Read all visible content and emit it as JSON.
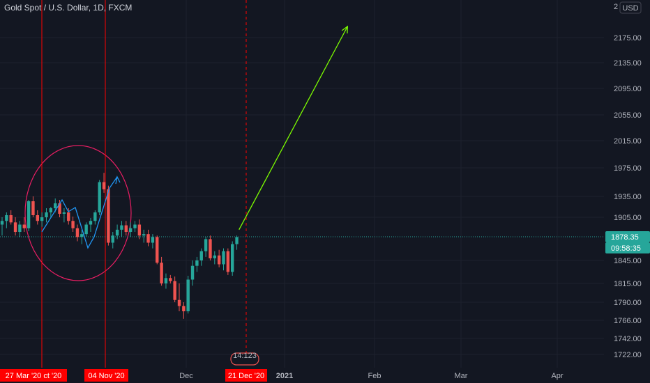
{
  "header": {
    "title": "Gold Spot / U.S. Dollar, 1D, FXCM",
    "currency": "USD"
  },
  "colors": {
    "bg": "#131722",
    "up": "#26a69a",
    "down": "#ef5350",
    "grid": "#1e222d",
    "text": "#b2b5be",
    "marker": "#ff0000",
    "arrow": "#7CFC00",
    "ellipse": "#e91e63",
    "pattern": "#2196f3",
    "price_line": "#26a69a"
  },
  "current": {
    "price": "1878.35",
    "countdown": "09:58:35"
  },
  "date_tags": {
    "left": "27 Mar '20",
    "left_suffix": "ct '20",
    "mid": "04 Nov '20",
    "right": "21 Dec '20"
  },
  "event_badge": "14:123",
  "chart_data": {
    "type": "candlestick",
    "title": "Gold Spot / U.S. Dollar, 1D, FXCM",
    "y_ticks": [
      "2175.00",
      "2135.00",
      "2095.00",
      "2055.00",
      "2015.00",
      "1975.00",
      "1935.00",
      "1905.00",
      "1878.35",
      "1845.00",
      "1815.00",
      "1790.00",
      "1766.00",
      "1742.00",
      "1722.00"
    ],
    "x_ticks": [
      "Dec",
      "2021",
      "Feb",
      "Mar",
      "Apr"
    ],
    "candles": [
      [
        1895,
        1905,
        1880,
        1900
      ],
      [
        1900,
        1912,
        1890,
        1908
      ],
      [
        1908,
        1915,
        1895,
        1898
      ],
      [
        1898,
        1905,
        1880,
        1885
      ],
      [
        1885,
        1900,
        1878,
        1895
      ],
      [
        1895,
        1905,
        1885,
        1890
      ],
      [
        1890,
        1930,
        1886,
        1928
      ],
      [
        1928,
        1935,
        1905,
        1908
      ],
      [
        1908,
        1915,
        1895,
        1900
      ],
      [
        1900,
        1912,
        1892,
        1905
      ],
      [
        1905,
        1918,
        1898,
        1912
      ],
      [
        1912,
        1920,
        1905,
        1918
      ],
      [
        1918,
        1932,
        1912,
        1925
      ],
      [
        1925,
        1930,
        1905,
        1910
      ],
      [
        1910,
        1918,
        1898,
        1912
      ],
      [
        1912,
        1918,
        1895,
        1900
      ],
      [
        1900,
        1906,
        1885,
        1890
      ],
      [
        1890,
        1895,
        1872,
        1878
      ],
      [
        1878,
        1888,
        1868,
        1882
      ],
      [
        1882,
        1898,
        1878,
        1895
      ],
      [
        1895,
        1904,
        1885,
        1900
      ],
      [
        1900,
        1915,
        1895,
        1912
      ],
      [
        1912,
        1958,
        1908,
        1955
      ],
      [
        1955,
        1968,
        1940,
        1945
      ],
      [
        1945,
        1950,
        1866,
        1870
      ],
      [
        1870,
        1885,
        1862,
        1880
      ],
      [
        1880,
        1895,
        1875,
        1888
      ],
      [
        1888,
        1900,
        1878,
        1894
      ],
      [
        1894,
        1900,
        1880,
        1885
      ],
      [
        1885,
        1898,
        1878,
        1890
      ],
      [
        1890,
        1900,
        1885,
        1895
      ],
      [
        1895,
        1902,
        1875,
        1880
      ],
      [
        1880,
        1888,
        1870,
        1882
      ],
      [
        1882,
        1888,
        1865,
        1870
      ],
      [
        1870,
        1882,
        1862,
        1878
      ],
      [
        1878,
        1880,
        1840,
        1842
      ],
      [
        1842,
        1850,
        1812,
        1815
      ],
      [
        1815,
        1828,
        1808,
        1822
      ],
      [
        1822,
        1826,
        1815,
        1818
      ],
      [
        1818,
        1824,
        1790,
        1793
      ],
      [
        1793,
        1815,
        1778,
        1785
      ],
      [
        1785,
        1790,
        1768,
        1778
      ],
      [
        1778,
        1825,
        1775,
        1820
      ],
      [
        1820,
        1845,
        1812,
        1838
      ],
      [
        1838,
        1850,
        1830,
        1845
      ],
      [
        1845,
        1862,
        1838,
        1858
      ],
      [
        1858,
        1878,
        1850,
        1875
      ],
      [
        1875,
        1880,
        1845,
        1848
      ],
      [
        1848,
        1858,
        1840,
        1852
      ],
      [
        1852,
        1860,
        1836,
        1840
      ],
      [
        1840,
        1862,
        1832,
        1858
      ],
      [
        1858,
        1862,
        1826,
        1830
      ],
      [
        1830,
        1872,
        1825,
        1868
      ],
      [
        1868,
        1880,
        1860,
        1878
      ]
    ],
    "drawn_arrow": {
      "from": {
        "x_index": 53.5,
        "y": 1888
      },
      "to": {
        "x_index": 78,
        "y": 2192
      }
    }
  }
}
